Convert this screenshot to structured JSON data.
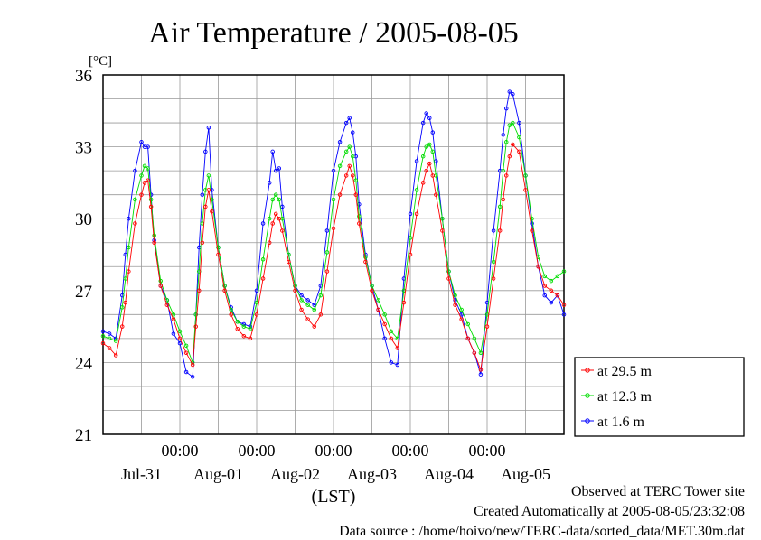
{
  "chart_data": {
    "type": "line",
    "title": "Air Temperature / 2005-08-05",
    "ylabel": "[°C]",
    "xlabel": "(LST)",
    "ylim": [
      21,
      36
    ],
    "yticks": [
      "21",
      "24",
      "27",
      "30",
      "33",
      "36"
    ],
    "xticks_time": [
      "00:00",
      "00:00",
      "00:00",
      "00:00",
      "00:00"
    ],
    "xticks_date": [
      "Jul-31",
      "Aug-01",
      "Aug-02",
      "Aug-03",
      "Aug-04",
      "Aug-05"
    ],
    "xrange_hours": [
      0,
      144
    ],
    "grid": true,
    "legend_position": "right-bottom",
    "series": [
      {
        "name": "at 29.5 m",
        "color": "#ff0000",
        "x": [
          0,
          2,
          4,
          6,
          7,
          8,
          10,
          12,
          13,
          14,
          15,
          16,
          18,
          20,
          22,
          24,
          26,
          28,
          29,
          30,
          31,
          32,
          33,
          34,
          36,
          38,
          40,
          42,
          44,
          46,
          48,
          50,
          52,
          53,
          54,
          55,
          56,
          58,
          60,
          62,
          64,
          66,
          68,
          70,
          72,
          74,
          76,
          77,
          78,
          79,
          80,
          82,
          84,
          86,
          88,
          90,
          92,
          94,
          96,
          98,
          100,
          101,
          102,
          103,
          104,
          106,
          108,
          110,
          112,
          114,
          116,
          118,
          120,
          122,
          124,
          125,
          126,
          127,
          128,
          130,
          132,
          134,
          136,
          138,
          140,
          142,
          144
        ],
        "y": [
          24.8,
          24.6,
          24.3,
          25.5,
          26.5,
          27.8,
          29.8,
          31.0,
          31.5,
          31.6,
          30.5,
          29.0,
          27.2,
          26.4,
          25.8,
          25.0,
          24.4,
          23.9,
          25.5,
          27.0,
          29.0,
          30.5,
          31.2,
          30.3,
          28.5,
          27.0,
          26.0,
          25.4,
          25.1,
          25.0,
          26.0,
          27.5,
          29.0,
          29.8,
          30.2,
          30.0,
          29.5,
          28.2,
          27.0,
          26.2,
          25.8,
          25.5,
          26.0,
          27.8,
          29.6,
          31.0,
          31.8,
          32.2,
          31.8,
          31.0,
          29.8,
          28.2,
          27.0,
          26.2,
          25.6,
          25.0,
          24.6,
          26.5,
          28.5,
          30.2,
          31.5,
          32.0,
          32.3,
          31.8,
          31.0,
          29.5,
          27.5,
          26.4,
          25.8,
          25.0,
          24.4,
          23.7,
          25.5,
          27.5,
          29.5,
          30.8,
          31.8,
          32.6,
          33.1,
          32.8,
          31.2,
          29.5,
          28.0,
          27.2,
          27.0,
          26.8,
          26.4
        ]
      },
      {
        "name": "at 12.3 m",
        "color": "#00dd00",
        "x": [
          0,
          2,
          4,
          6,
          7,
          8,
          10,
          12,
          13,
          14,
          15,
          16,
          18,
          20,
          22,
          24,
          26,
          28,
          29,
          30,
          31,
          32,
          33,
          34,
          36,
          38,
          40,
          42,
          44,
          46,
          48,
          50,
          52,
          53,
          54,
          55,
          56,
          58,
          60,
          62,
          64,
          66,
          68,
          70,
          72,
          74,
          76,
          77,
          78,
          79,
          80,
          82,
          84,
          86,
          88,
          90,
          92,
          94,
          96,
          98,
          100,
          101,
          102,
          103,
          104,
          106,
          108,
          110,
          112,
          114,
          116,
          118,
          120,
          122,
          124,
          125,
          126,
          127,
          128,
          130,
          132,
          134,
          136,
          138,
          140,
          142,
          144
        ],
        "y": [
          25.1,
          25.0,
          24.9,
          26.3,
          27.5,
          28.8,
          30.8,
          31.8,
          32.2,
          32.1,
          30.8,
          29.3,
          27.4,
          26.6,
          26.0,
          25.3,
          24.7,
          24.0,
          26.0,
          27.8,
          29.8,
          31.2,
          31.8,
          30.8,
          28.8,
          27.2,
          26.2,
          25.7,
          25.5,
          25.4,
          26.5,
          28.3,
          30.0,
          30.8,
          31.0,
          30.8,
          30.0,
          28.5,
          27.2,
          26.6,
          26.4,
          26.2,
          26.8,
          28.6,
          30.8,
          32.2,
          32.8,
          33.0,
          32.6,
          31.6,
          30.1,
          28.4,
          27.2,
          26.6,
          26.0,
          25.3,
          25.0,
          27.0,
          29.2,
          31.2,
          32.6,
          33.0,
          33.1,
          32.8,
          31.8,
          30.0,
          27.8,
          26.8,
          26.2,
          25.6,
          25.0,
          24.4,
          26.0,
          28.2,
          30.5,
          32.0,
          33.2,
          33.9,
          34.0,
          33.4,
          31.8,
          30.0,
          28.4,
          27.6,
          27.4,
          27.6,
          27.8
        ]
      },
      {
        "name": "at 1.6 m",
        "color": "#0000ff",
        "x": [
          0,
          2,
          4,
          6,
          7,
          8,
          10,
          12,
          13,
          14,
          15,
          16,
          18,
          20,
          22,
          24,
          26,
          28,
          29,
          30,
          31,
          32,
          33,
          34,
          36,
          38,
          40,
          42,
          44,
          46,
          48,
          50,
          52,
          53,
          54,
          55,
          56,
          58,
          60,
          62,
          64,
          66,
          68,
          70,
          72,
          74,
          76,
          77,
          78,
          79,
          80,
          82,
          84,
          86,
          88,
          90,
          92,
          94,
          96,
          98,
          100,
          101,
          102,
          103,
          104,
          106,
          108,
          110,
          112,
          114,
          116,
          118,
          120,
          122,
          124,
          125,
          126,
          127,
          128,
          130,
          132,
          134,
          136,
          138,
          140,
          142,
          144
        ],
        "y": [
          25.3,
          25.2,
          25.0,
          26.8,
          28.5,
          30.0,
          32.0,
          33.2,
          33.0,
          33.0,
          31.0,
          29.1,
          27.2,
          26.6,
          25.2,
          24.8,
          23.6,
          23.4,
          26.0,
          28.8,
          31.0,
          32.8,
          33.8,
          31.2,
          28.8,
          27.2,
          26.3,
          25.7,
          25.6,
          25.5,
          27.0,
          29.8,
          31.5,
          32.8,
          32.0,
          32.1,
          30.5,
          28.5,
          27.2,
          26.8,
          26.6,
          26.4,
          27.2,
          29.5,
          32.0,
          33.2,
          34.0,
          34.2,
          33.6,
          32.6,
          30.6,
          28.5,
          27.2,
          26.2,
          25.0,
          24.0,
          23.9,
          27.5,
          30.2,
          32.4,
          34.0,
          34.4,
          34.2,
          33.6,
          32.4,
          30.0,
          27.8,
          26.6,
          26.0,
          25.0,
          24.4,
          23.5,
          26.5,
          29.5,
          32.0,
          33.5,
          34.6,
          35.3,
          35.2,
          34.0,
          31.8,
          29.8,
          28.0,
          26.8,
          26.5,
          26.8,
          26.0
        ]
      }
    ]
  },
  "footer": {
    "line1": "Observed at TERC Tower site",
    "line2": "Created Automatically at 2005-08-05/23:32:08",
    "line3": "Data source : /home/hoivo/new/TERC-data/sorted_data/MET.30m.dat"
  }
}
